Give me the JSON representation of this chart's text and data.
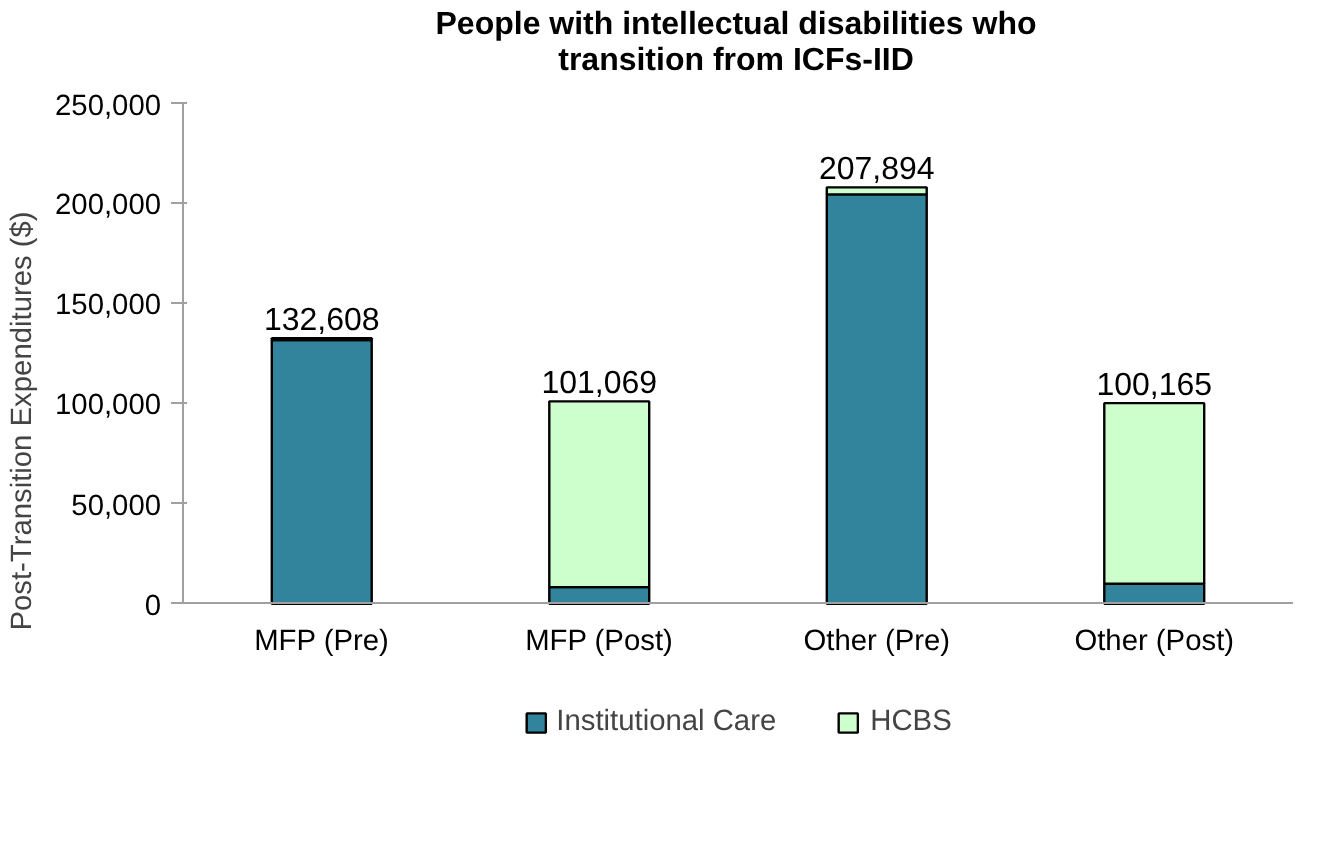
{
  "chart_data": {
    "type": "bar",
    "stacked": true,
    "title": "People with intellectual disabilities who transition from ICFs-IID",
    "ylabel": "Post-Transition Expenditures ($)",
    "categories": [
      "MFP (Pre)",
      "MFP (Post)",
      "Other (Pre)",
      "Other (Post)"
    ],
    "series": [
      {
        "name": "Institutional Care",
        "color": "#31849b",
        "values": [
          131600,
          8300,
          204400,
          10000
        ]
      },
      {
        "name": "HCBS",
        "color": "#ccffcc",
        "values": [
          1008,
          92769,
          3494,
          90165
        ]
      }
    ],
    "totals": [
      "132,608",
      "101,069",
      "207,894",
      "100,165"
    ],
    "ylim": [
      0,
      250000
    ],
    "yticks": [
      {
        "value": 0,
        "label": "0"
      },
      {
        "value": 50000,
        "label": "50,000"
      },
      {
        "value": 100000,
        "label": "100,000"
      },
      {
        "value": 150000,
        "label": "150,000"
      },
      {
        "value": 200000,
        "label": "200,000"
      },
      {
        "value": 250000,
        "label": "250,000"
      }
    ],
    "grid": false,
    "legend": "bottom"
  }
}
